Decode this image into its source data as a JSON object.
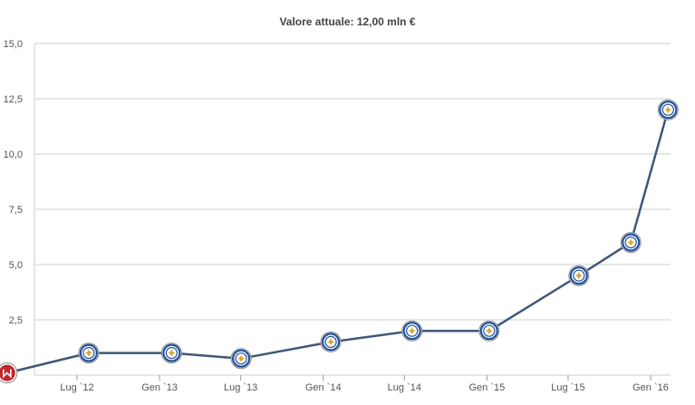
{
  "chart_data": {
    "type": "line",
    "title": "Valore attuale: 12,00 mln €",
    "y_ticks": [
      "15,0",
      "12,5",
      "10,0",
      "7,5",
      "5,0",
      "2,5"
    ],
    "ylim": [
      0,
      15
    ],
    "x_ticks": [
      {
        "label": "Lug `12",
        "date": "2012-07-01"
      },
      {
        "label": "Gen `13",
        "date": "2013-01-01"
      },
      {
        "label": "Lug `13",
        "date": "2013-07-01"
      },
      {
        "label": "Gen `14",
        "date": "2014-01-01"
      },
      {
        "label": "Lug `14",
        "date": "2014-07-01"
      },
      {
        "label": "Gen `15",
        "date": "2015-01-01"
      },
      {
        "label": "Lug `15",
        "date": "2015-07-01"
      },
      {
        "label": "Gen `16",
        "date": "2016-01-01"
      }
    ],
    "grid": true,
    "points": [
      {
        "date": "2012-01-27",
        "value": 0.1,
        "club": "first-club"
      },
      {
        "date": "2012-07-27",
        "value": 1.0,
        "club": "leicester"
      },
      {
        "date": "2013-01-28",
        "value": 1.0,
        "club": "leicester"
      },
      {
        "date": "2013-07-02",
        "value": 0.75,
        "club": "leicester"
      },
      {
        "date": "2014-01-18",
        "value": 1.5,
        "club": "leicester"
      },
      {
        "date": "2014-07-18",
        "value": 2.0,
        "club": "leicester"
      },
      {
        "date": "2015-01-06",
        "value": 2.0,
        "club": "leicester"
      },
      {
        "date": "2015-07-25",
        "value": 4.5,
        "club": "leicester"
      },
      {
        "date": "2015-11-18",
        "value": 6.0,
        "club": "leicester"
      },
      {
        "date": "2016-02-09",
        "value": 12.0,
        "club": "leicester"
      }
    ]
  },
  "colors": {
    "line": "#3f5877",
    "grid": "#cfcfcf",
    "badge_blue": "#1f4f9a",
    "badge_gold": "#d8a526",
    "first_club_red": "#c2262e"
  },
  "icons": {
    "leicester": "club-crest-icon",
    "first-club": "club-crest-icon"
  }
}
